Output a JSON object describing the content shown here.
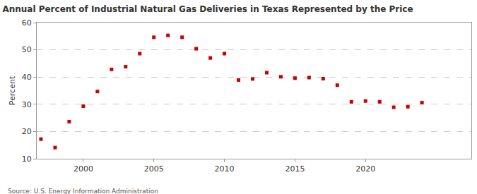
{
  "chart_data": {
    "type": "scatter",
    "title": "Annual Percent of Industrial Natural Gas Deliveries in Texas Represented by the Price",
    "y_label": "Percent",
    "source": "Source: U.S. Energy Information Administration",
    "x": [
      1997,
      1998,
      1999,
      2000,
      2001,
      2002,
      2003,
      2004,
      2005,
      2006,
      2007,
      2008,
      2009,
      2010,
      2011,
      2012,
      2013,
      2014,
      2015,
      2016,
      2017,
      2018,
      2019,
      2020,
      2021,
      2022,
      2023,
      2024
    ],
    "values": [
      17.2,
      14.1,
      23.6,
      29.3,
      34.7,
      42.8,
      43.8,
      48.6,
      54.6,
      55.3,
      54.6,
      50.4,
      47.0,
      48.6,
      38.9,
      39.3,
      41.6,
      40.1,
      39.6,
      39.8,
      39.4,
      37.0,
      30.9,
      31.2,
      30.9,
      28.9,
      29.1,
      30.6
    ],
    "color": "#cc0000",
    "marker": "square",
    "xlim": [
      1996.7,
      2027.5
    ],
    "xticks": [
      2000,
      2005,
      2010,
      2015,
      2020
    ],
    "ylim": [
      10,
      60
    ],
    "yticks": [
      10,
      20,
      30,
      40,
      50,
      60
    ],
    "grid": true
  }
}
